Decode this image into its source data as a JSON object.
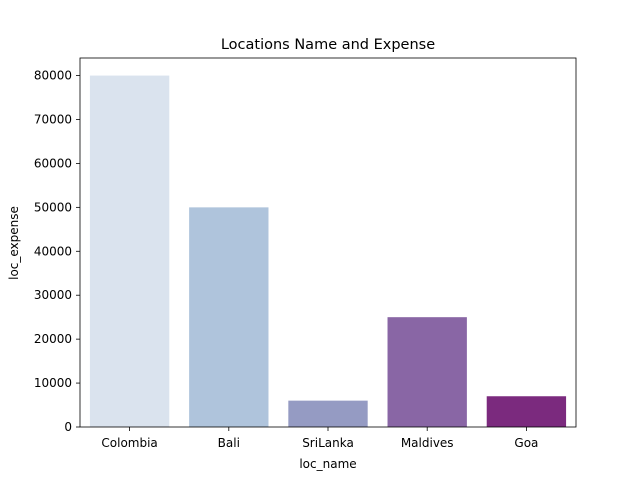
{
  "chart_data": {
    "type": "bar",
    "title": "Locations Name and Expense",
    "xlabel": "loc_name",
    "ylabel": "loc_expense",
    "categories": [
      "Colombia",
      "Bali",
      "SriLanka",
      "Maldives",
      "Goa"
    ],
    "values": [
      80000,
      50000,
      6000,
      25000,
      7000
    ],
    "colors": [
      "#dae3ee",
      "#afc4dc",
      "#959bc3",
      "#8966a5",
      "#7b2a7e"
    ],
    "ylim": [
      0,
      84000
    ],
    "yticks": [
      0,
      10000,
      20000,
      30000,
      40000,
      50000,
      60000,
      70000,
      80000
    ],
    "grid": false
  }
}
